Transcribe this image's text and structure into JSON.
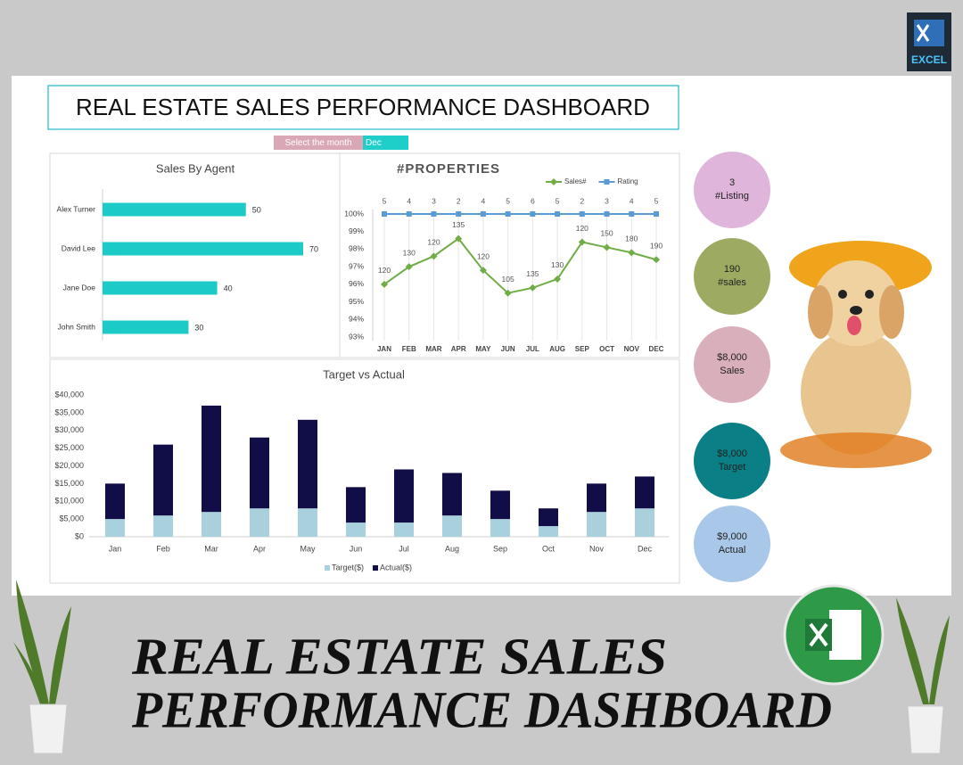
{
  "excel_badge": {
    "label": "EXCEL"
  },
  "header": {
    "title": "REAL ESTATE SALES PERFORMANCE DASHBOARD",
    "month_prompt": "Select the month",
    "month": "Dec"
  },
  "chart_data": [
    {
      "type": "bar",
      "orientation": "horizontal",
      "title": "Sales By Agent",
      "categories": [
        "Alex Turner",
        "David Lee",
        "Jane Doe",
        "John Smith"
      ],
      "values": [
        50,
        70,
        40,
        30
      ],
      "color": "#1ccbc8"
    },
    {
      "type": "line",
      "title": "#PROPERTIES",
      "categories": [
        "JAN",
        "FEB",
        "MAR",
        "APR",
        "MAY",
        "JUN",
        "JUL",
        "AUG",
        "SEP",
        "OCT",
        "NOV",
        "DEC"
      ],
      "series": [
        {
          "name": "Sales#",
          "color": "#70ad47",
          "marker": "diamond",
          "values": [
            96,
            97,
            97.6,
            98.6,
            96.8,
            95.5,
            95.8,
            96.3,
            98.4,
            98.1,
            97.8,
            97.4
          ],
          "point_labels": [
            120,
            130,
            120,
            135,
            120,
            105,
            135,
            130,
            120,
            150,
            180,
            190
          ]
        },
        {
          "name": "Rating",
          "color": "#5b9bd5",
          "marker": "square",
          "values": [
            100,
            100,
            100,
            100,
            100,
            100,
            100,
            100,
            100,
            100,
            100,
            100
          ],
          "point_labels": [
            5,
            4,
            3,
            2,
            4,
            5,
            6,
            5,
            2,
            3,
            4,
            5
          ]
        }
      ],
      "ylim": [
        93,
        100
      ],
      "yticks": [
        {
          "value": 93,
          "label": "93%"
        },
        {
          "value": 94,
          "label": "94%"
        },
        {
          "value": 95,
          "label": "95%"
        },
        {
          "value": 96,
          "label": "96%"
        },
        {
          "value": 97,
          "label": "97%"
        },
        {
          "value": 98,
          "label": "98%"
        },
        {
          "value": 99,
          "label": "99%"
        },
        {
          "value": 100,
          "label": "100%"
        }
      ],
      "grid": true,
      "legend": "top"
    },
    {
      "type": "bar",
      "stacked": true,
      "title": "Target vs Actual",
      "categories": [
        "Jan",
        "Feb",
        "Mar",
        "Apr",
        "May",
        "Jun",
        "Jul",
        "Aug",
        "Sep",
        "Oct",
        "Nov",
        "Dec"
      ],
      "series": [
        {
          "name": "Target($)",
          "color": "#a9d0dd",
          "values": [
            5000,
            6000,
            7000,
            8000,
            8000,
            4000,
            4000,
            6000,
            5000,
            3000,
            7000,
            8000
          ]
        },
        {
          "name": "Actual($)",
          "color": "#110d47",
          "values": [
            10000,
            20000,
            30000,
            20000,
            25000,
            10000,
            15000,
            12000,
            8000,
            5000,
            8000,
            9000
          ]
        }
      ],
      "ylim": [
        0,
        40000
      ],
      "yticks": [
        {
          "value": 0,
          "label": "$0"
        },
        {
          "value": 5000,
          "label": "$5,000"
        },
        {
          "value": 10000,
          "label": "$10,000"
        },
        {
          "value": 15000,
          "label": "$15,000"
        },
        {
          "value": 20000,
          "label": "$20,000"
        },
        {
          "value": 25000,
          "label": "$25,000"
        },
        {
          "value": 30000,
          "label": "$30,000"
        },
        {
          "value": 35000,
          "label": "$35,000"
        },
        {
          "value": 40000,
          "label": "$40,000"
        }
      ],
      "grid": false,
      "legend": "bottom"
    }
  ],
  "kpis": [
    {
      "value": "3",
      "label": "#Listing",
      "color": "#dfb5dc"
    },
    {
      "value": "190",
      "label": "#sales",
      "color": "#9dab62"
    },
    {
      "value": "$8,000",
      "label": "Sales",
      "color": "#d9afbb"
    },
    {
      "value": "$8,000",
      "label": "Target",
      "color": "#0b7f86"
    },
    {
      "value": "$9,000",
      "label": "Actual",
      "color": "#a9c8e9"
    }
  ],
  "banner": {
    "lines": [
      "REAL ESTATE SALES",
      "PERFORMANCE DASHBOARD"
    ]
  }
}
